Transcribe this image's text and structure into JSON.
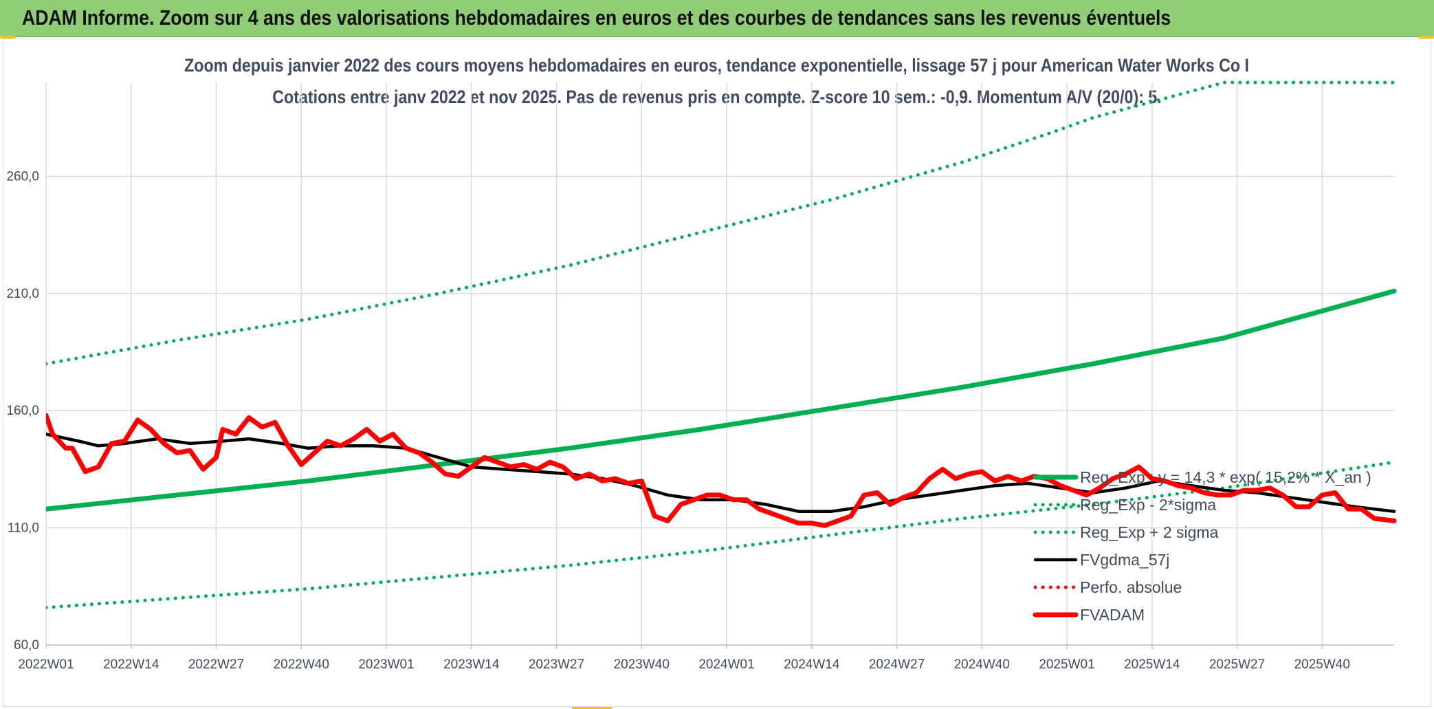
{
  "header": {
    "title": "ADAM Informe. Zoom sur 4 ans des valorisations hebdomadaires en euros et des courbes de tendances sans les revenus éventuels"
  },
  "colors": {
    "banner": "#8fcd77",
    "trend": "#00b050",
    "price": "#ff0000",
    "smooth": "#000000",
    "text": "#404a60",
    "grid": "#d9d9d9"
  },
  "chart_data": {
    "type": "line",
    "title": "Zoom depuis janvier 2022 des cours moyens hebdomadaires en euros, tendance exponentielle, lissage 57 j pour American Water Works Co I",
    "subtitle": "Cotations entre janv 2022 et nov 2025. Pas de revenus pris en compte. Z-score 10 sem.: -0,9. Momentum A/V (20/0): 5.",
    "xlabel": "",
    "ylabel": "",
    "ylim": [
      60,
      300
    ],
    "yticks": [
      "60,0",
      "110,0",
      "160,0",
      "210,0",
      "260,0"
    ],
    "ytick_values": [
      60,
      110,
      160,
      210,
      260
    ],
    "xticks": [
      "2022W01",
      "2022W14",
      "2022W27",
      "2022W40",
      "2023W01",
      "2023W14",
      "2023W27",
      "2023W40",
      "2024W01",
      "2024W14",
      "2024W27",
      "2024W40",
      "2025W01",
      "2025W14",
      "2025W27",
      "2025W40"
    ],
    "xtick_weeks": [
      0,
      13,
      26,
      39,
      52,
      65,
      78,
      91,
      104,
      117,
      130,
      143,
      156,
      169,
      182,
      195
    ],
    "x_weeks_total": 206,
    "grid": true,
    "legend_position": "right",
    "series": [
      {
        "name": "Reg_Exp : y = 14,3 * exp( 15,2% * X_an )",
        "style": "solid-thick",
        "color": "#00b050",
        "x": [
          0,
          20,
          40,
          60,
          80,
          100,
          120,
          140,
          160,
          180,
          206
        ],
        "values": [
          118,
          124,
          130,
          137,
          144,
          152,
          161,
          170,
          180,
          191,
          211
        ]
      },
      {
        "name": "Reg_Exp - 2*sigma",
        "style": "dotted",
        "color": "#00b050",
        "x": [
          0,
          20,
          40,
          60,
          80,
          100,
          120,
          140,
          160,
          180,
          206
        ],
        "values": [
          76,
          80,
          84,
          89,
          94,
          100,
          107,
          114,
          120,
          127,
          138
        ]
      },
      {
        "name": "Reg_Exp + 2 sigma",
        "style": "dotted",
        "color": "#00b050",
        "x": [
          0,
          20,
          40,
          60,
          80,
          100,
          120,
          140,
          154,
          160,
          180,
          206
        ],
        "values": [
          180,
          190,
          199,
          210,
          222,
          236,
          250,
          266,
          279,
          285,
          300,
          300
        ]
      },
      {
        "name": "FVgdma_57j",
        "style": "solid",
        "color": "#000000",
        "x": [
          0,
          5,
          8,
          12,
          17,
          22,
          27,
          31,
          36,
          40,
          45,
          50,
          55,
          60,
          65,
          70,
          75,
          80,
          85,
          90,
          95,
          100,
          105,
          110,
          115,
          120,
          125,
          130,
          135,
          140,
          145,
          150,
          155,
          160,
          165,
          170,
          175,
          180,
          185,
          190,
          195,
          200,
          206
        ],
        "values": [
          150,
          147,
          145,
          146,
          148,
          146,
          147,
          148,
          146,
          144,
          145,
          145,
          144,
          140,
          136,
          135,
          134,
          133,
          131,
          128,
          124,
          122,
          122,
          120,
          117,
          117,
          119,
          122,
          124,
          126,
          128,
          129,
          127,
          125,
          127,
          130,
          128,
          126,
          125,
          123,
          121,
          119,
          117
        ]
      },
      {
        "name": "Perfo. absolue",
        "style": "dotted",
        "color": "#ff0000",
        "x": [],
        "values": []
      },
      {
        "name": "FVADAM",
        "style": "solid-thick",
        "color": "#ff0000",
        "x": [
          0,
          1,
          3,
          4,
          6,
          8,
          10,
          12,
          14,
          16,
          18,
          20,
          22,
          24,
          26,
          27,
          29,
          31,
          33,
          35,
          37,
          39,
          41,
          43,
          45,
          47,
          49,
          51,
          53,
          55,
          57,
          59,
          61,
          63,
          65,
          67,
          69,
          71,
          73,
          75,
          77,
          79,
          81,
          83,
          85,
          87,
          89,
          91,
          93,
          95,
          97,
          99,
          101,
          103,
          105,
          107,
          109,
          111,
          113,
          115,
          117,
          119,
          121,
          123,
          125,
          127,
          129,
          131,
          133,
          135,
          137,
          139,
          141,
          143,
          145,
          147,
          149,
          151,
          153,
          155,
          157,
          159,
          161,
          163,
          165,
          167,
          169,
          171,
          173,
          175,
          177,
          179,
          181,
          183,
          185,
          187,
          189,
          191,
          193,
          195,
          197,
          199,
          201,
          203,
          206
        ],
        "values": [
          158,
          150,
          144,
          144,
          134,
          136,
          146,
          147,
          156,
          152,
          146,
          142,
          143,
          135,
          140,
          152,
          150,
          157,
          153,
          155,
          145,
          137,
          142,
          147,
          145,
          148,
          152,
          147,
          150,
          144,
          142,
          138,
          133,
          132,
          136,
          140,
          138,
          136,
          137,
          135,
          138,
          136,
          131,
          133,
          130,
          131,
          129,
          130,
          115,
          113,
          120,
          122,
          124,
          124,
          122,
          122,
          118,
          116,
          114,
          112,
          112,
          111,
          113,
          115,
          124,
          125,
          120,
          123,
          125,
          131,
          135,
          131,
          133,
          134,
          130,
          132,
          130,
          132,
          131,
          128,
          126,
          124,
          127,
          131,
          133,
          136,
          131,
          130,
          128,
          127,
          125,
          124,
          124,
          126,
          126,
          127,
          124,
          119,
          119,
          124,
          125,
          118,
          118,
          114,
          113
        ]
      }
    ]
  }
}
